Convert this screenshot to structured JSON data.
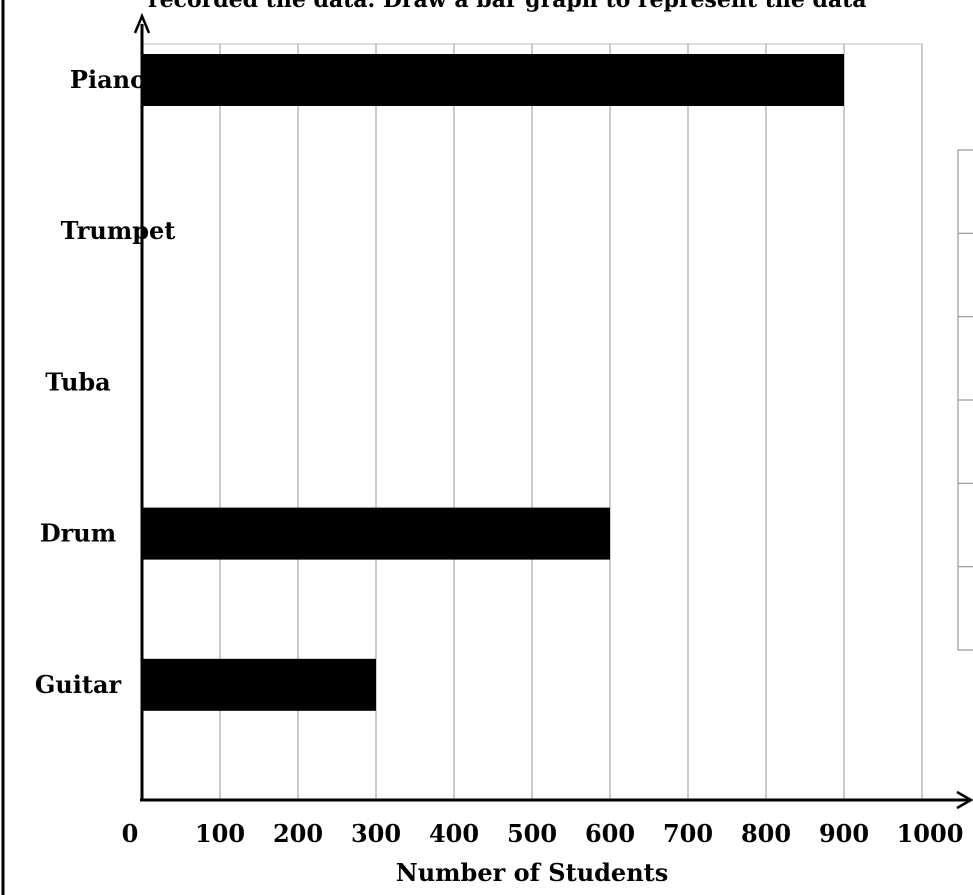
{
  "header_text": "recorded the data. Draw a bar graph to represent the data",
  "chart_data": {
    "type": "bar",
    "orientation": "horizontal",
    "categories": [
      "Piano",
      "Trumpet",
      "Tuba",
      "Drum",
      "Guitar"
    ],
    "values": [
      900,
      0,
      0,
      600,
      300
    ],
    "xlabel": "Number of Students",
    "ylabel": "",
    "xlim": [
      0,
      1000
    ],
    "x_ticks": [
      "0",
      "100",
      "200",
      "300",
      "400",
      "500",
      "600",
      "700",
      "800",
      "900",
      "1000"
    ],
    "grid": "vertical",
    "bar_color": "#000000",
    "grid_color": "#a6a6a6",
    "side_table_rows": 6
  }
}
